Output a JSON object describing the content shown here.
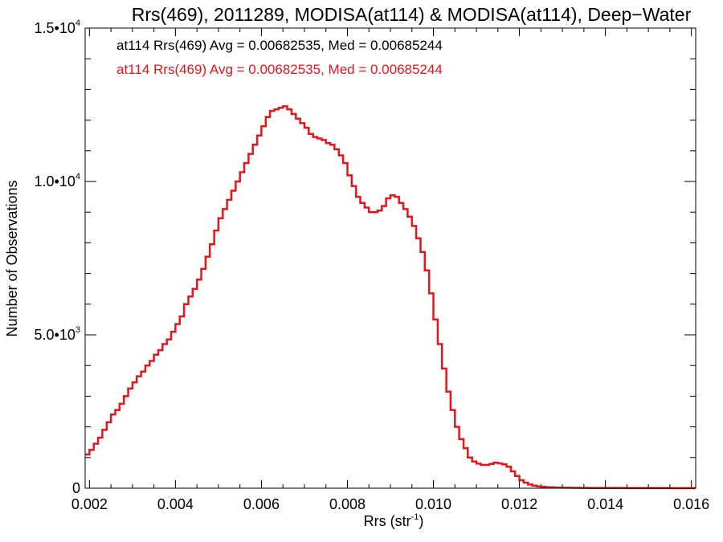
{
  "chart_data": {
    "type": "line",
    "title": "Rrs(469), 2011289, MODISA(at114) & MODISA(at114), Deep−Water",
    "xlabel": "Rrs (str",
    "xlabel_sup": "-1",
    "xlabel_end": ")",
    "ylabel": "Number of Observations",
    "xlim": [
      0.0019,
      0.0161
    ],
    "ylim": [
      0,
      15000
    ],
    "x_ticks": [
      {
        "value": 0.002,
        "label": "0.002"
      },
      {
        "value": 0.004,
        "label": "0.004"
      },
      {
        "value": 0.006,
        "label": "0.006"
      },
      {
        "value": 0.008,
        "label": "0.008"
      },
      {
        "value": 0.01,
        "label": "0.010"
      },
      {
        "value": 0.012,
        "label": "0.012"
      },
      {
        "value": 0.014,
        "label": "0.014"
      },
      {
        "value": 0.016,
        "label": "0.016"
      }
    ],
    "y_ticks": [
      {
        "value": 0,
        "label": "0",
        "sup": ""
      },
      {
        "value": 5000,
        "label": "5.0•10",
        "sup": "3"
      },
      {
        "value": 10000,
        "label": "1.0•10",
        "sup": "4"
      },
      {
        "value": 15000,
        "label": "1.5•10",
        "sup": "4"
      }
    ],
    "annotations": [
      {
        "text": "at114 Rrs(469) Avg = 0.00682535, Med = 0.00685244",
        "color": "#000000"
      },
      {
        "text": "at114 Rrs(469) Avg = 0.00682535, Med = 0.00685244",
        "color": "#e8141c"
      }
    ],
    "series": [
      {
        "color": "#e8141c",
        "style": "step",
        "x": [
          0.0019,
          0.002,
          0.0021,
          0.0022,
          0.0023,
          0.0024,
          0.0025,
          0.0026,
          0.0027,
          0.0028,
          0.0029,
          0.003,
          0.0031,
          0.0032,
          0.0033,
          0.0034,
          0.0035,
          0.0036,
          0.0037,
          0.0038,
          0.0039,
          0.004,
          0.0041,
          0.0042,
          0.0043,
          0.0044,
          0.0045,
          0.0046,
          0.0047,
          0.0048,
          0.0049,
          0.005,
          0.0051,
          0.0052,
          0.0053,
          0.0054,
          0.0055,
          0.0056,
          0.0057,
          0.0058,
          0.0059,
          0.006,
          0.0061,
          0.0062,
          0.0063,
          0.0064,
          0.0065,
          0.0066,
          0.0067,
          0.0068,
          0.0069,
          0.007,
          0.0071,
          0.0072,
          0.0073,
          0.0074,
          0.0075,
          0.0076,
          0.0077,
          0.0078,
          0.0079,
          0.008,
          0.0081,
          0.0082,
          0.0083,
          0.0084,
          0.0085,
          0.0086,
          0.0087,
          0.0088,
          0.0089,
          0.009,
          0.0091,
          0.0092,
          0.0093,
          0.0094,
          0.0095,
          0.0096,
          0.0097,
          0.0098,
          0.0099,
          0.01,
          0.0101,
          0.0102,
          0.0103,
          0.0104,
          0.0105,
          0.0106,
          0.0107,
          0.0108,
          0.0109,
          0.011,
          0.0111,
          0.0112,
          0.0113,
          0.0114,
          0.0115,
          0.0116,
          0.0117,
          0.0118,
          0.0119,
          0.012,
          0.0121,
          0.0122,
          0.0123,
          0.0124,
          0.0125,
          0.0126,
          0.0127,
          0.0128,
          0.0129,
          0.013,
          0.0132,
          0.0134,
          0.0136,
          0.0138,
          0.014,
          0.0145,
          0.015,
          0.0155,
          0.0161
        ],
        "y": [
          1100,
          1250,
          1450,
          1650,
          1900,
          2150,
          2400,
          2550,
          2750,
          3000,
          3250,
          3450,
          3650,
          3800,
          4000,
          4150,
          4350,
          4500,
          4700,
          4850,
          5100,
          5350,
          5600,
          6000,
          6250,
          6500,
          6800,
          7150,
          7550,
          7950,
          8400,
          8800,
          9100,
          9400,
          9700,
          10000,
          10300,
          10600,
          10900,
          11200,
          11500,
          11800,
          12100,
          12300,
          12350,
          12400,
          12450,
          12350,
          12200,
          12050,
          11900,
          11750,
          11550,
          11450,
          11400,
          11350,
          11250,
          11200,
          11050,
          10850,
          10600,
          10200,
          9850,
          9500,
          9300,
          9150,
          9000,
          9000,
          9050,
          9200,
          9450,
          9550,
          9500,
          9300,
          9100,
          8850,
          8550,
          8150,
          7700,
          7100,
          6350,
          5500,
          4700,
          3900,
          3150,
          2550,
          2000,
          1600,
          1300,
          1000,
          870,
          800,
          760,
          760,
          790,
          830,
          810,
          780,
          700,
          550,
          400,
          260,
          180,
          120,
          85,
          60,
          45,
          35,
          28,
          22,
          18,
          15,
          12,
          10,
          8,
          6,
          5,
          3,
          2,
          1,
          0
        ]
      }
    ]
  }
}
